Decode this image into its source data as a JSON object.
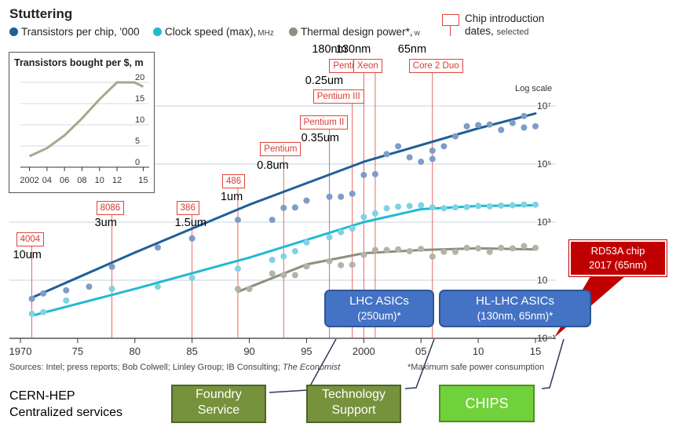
{
  "title": "Stuttering",
  "legend": [
    {
      "label": "Transistors per chip, '000",
      "unit": "",
      "color": "#1f5f99"
    },
    {
      "label": "Clock speed (max),",
      "unit": "MHz",
      "color": "#21b9d2"
    },
    {
      "label": "Thermal design power*,",
      "unit": "w",
      "color": "#8e8f7f"
    }
  ],
  "chip_legend": {
    "line1": "Chip introduction",
    "line2": "dates,",
    "line2_small": "selected"
  },
  "log_scale_label": "Log scale",
  "source": "Sources: Intel; press reports; Bob Colwell; Linley Group; IB Consulting;",
  "source_italic": "The Economist",
  "footnote": "*Maximum safe power consumption",
  "chips": [
    {
      "name": "4004",
      "year": 1971,
      "node": "10um"
    },
    {
      "name": "8086",
      "year": 1978,
      "node": "3um"
    },
    {
      "name": "386",
      "year": 1985,
      "node": "1.5um"
    },
    {
      "name": "486",
      "year": 1989,
      "node": "1um"
    },
    {
      "name": "Pentium",
      "year": 1993,
      "node": "0.8um"
    },
    {
      "name": "Pentium II",
      "year": 1997,
      "node": "0.35um"
    },
    {
      "name": "Pentium III",
      "year": 1999,
      "node": "0.25um"
    },
    {
      "name": "Pentium 4",
      "year": 2000,
      "node": "180nm"
    },
    {
      "name": "Xeon",
      "year": 2001,
      "node": "130nm"
    },
    {
      "name": "Core 2 Duo",
      "year": 2006,
      "node": "65nm"
    }
  ],
  "chart_data": [
    {
      "type": "scatter",
      "title": "Stuttering",
      "y_scale": "log",
      "ylim": [
        0.1,
        10000000
      ],
      "xlim": [
        1970,
        2016
      ],
      "x_tick_labels": [
        "1970",
        "75",
        "80",
        "85",
        "90",
        "95",
        "2000",
        "05",
        "10",
        "15"
      ],
      "x_tick_values": [
        1970,
        1975,
        1980,
        1985,
        1990,
        1995,
        2000,
        2005,
        2010,
        2015
      ],
      "y_tick_labels": [
        "10⁻¹",
        "10",
        "10³",
        "10⁵",
        "10⁷"
      ],
      "y_tick_values": [
        0.1,
        10,
        1000,
        100000,
        10000000
      ],
      "series": [
        {
          "name": "Transistors per chip, '000",
          "color": "#1f5f99",
          "points": [
            [
              1971,
              2.3
            ],
            [
              1972,
              3.5
            ],
            [
              1974,
              4.5
            ],
            [
              1976,
              6
            ],
            [
              1978,
              29
            ],
            [
              1982,
              134
            ],
            [
              1985,
              275
            ],
            [
              1985,
              275
            ],
            [
              1989,
              1200
            ],
            [
              1992,
              1200
            ],
            [
              1993,
              3100
            ],
            [
              1994,
              3200
            ],
            [
              1995,
              5500
            ],
            [
              1997,
              7500
            ],
            [
              1998,
              7500
            ],
            [
              1999,
              9500
            ],
            [
              2000,
              42000
            ],
            [
              2001,
              45000
            ],
            [
              2002,
              220000
            ],
            [
              2003,
              410000
            ],
            [
              2004,
              170000
            ],
            [
              2005,
              120000
            ],
            [
              2006,
              290000
            ],
            [
              2006,
              150000
            ],
            [
              2007,
              410000
            ],
            [
              2008,
              900000
            ],
            [
              2009,
              2000000
            ],
            [
              2010,
              2200000
            ],
            [
              2011,
              2300000
            ],
            [
              2012,
              1500000
            ],
            [
              2013,
              2600000
            ],
            [
              2014,
              1800000
            ],
            [
              2014,
              4500000
            ],
            [
              2015,
              2000000
            ]
          ],
          "trend": [
            [
              1971,
              2.5
            ],
            [
              1980,
              90
            ],
            [
              1990,
              4000
            ],
            [
              2000,
              120000
            ],
            [
              2010,
              1700000
            ],
            [
              2015,
              5500000
            ]
          ]
        },
        {
          "name": "Clock speed (max), MHz",
          "color": "#21b9d2",
          "points": [
            [
              1971,
              0.7
            ],
            [
              1972,
              0.8
            ],
            [
              1974,
              2
            ],
            [
              1978,
              5
            ],
            [
              1982,
              6
            ],
            [
              1985,
              12
            ],
            [
              1989,
              25
            ],
            [
              1992,
              50
            ],
            [
              1993,
              66
            ],
            [
              1994,
              100
            ],
            [
              1995,
              200
            ],
            [
              1997,
              300
            ],
            [
              1998,
              450
            ],
            [
              1999,
              600
            ],
            [
              2000,
              1500
            ],
            [
              2001,
              2000
            ],
            [
              2002,
              3000
            ],
            [
              2003,
              3400
            ],
            [
              2004,
              3600
            ],
            [
              2005,
              3800
            ],
            [
              2006,
              3200
            ],
            [
              2007,
              3000
            ],
            [
              2008,
              3200
            ],
            [
              2009,
              3300
            ],
            [
              2010,
              3600
            ],
            [
              2011,
              3500
            ],
            [
              2012,
              3700
            ],
            [
              2013,
              3800
            ],
            [
              2014,
              4000
            ],
            [
              2015,
              4000
            ]
          ],
          "trend": [
            [
              1971,
              0.6
            ],
            [
              1980,
              5
            ],
            [
              1990,
              60
            ],
            [
              2000,
              1000
            ],
            [
              2005,
              2800
            ],
            [
              2010,
              3600
            ],
            [
              2015,
              3800
            ]
          ]
        },
        {
          "name": "Thermal design power*, w",
          "color": "#8e8f7f",
          "points": [
            [
              1989,
              5
            ],
            [
              1990,
              5
            ],
            [
              1992,
              17
            ],
            [
              1993,
              15
            ],
            [
              1994,
              15
            ],
            [
              1995,
              30
            ],
            [
              1997,
              45
            ],
            [
              1998,
              33
            ],
            [
              1999,
              34
            ],
            [
              2000,
              75
            ],
            [
              2001,
              110
            ],
            [
              2002,
              110
            ],
            [
              2003,
              115
            ],
            [
              2004,
              100
            ],
            [
              2005,
              120
            ],
            [
              2006,
              65
            ],
            [
              2007,
              95
            ],
            [
              2008,
              95
            ],
            [
              2009,
              130
            ],
            [
              2010,
              125
            ],
            [
              2011,
              95
            ],
            [
              2012,
              130
            ],
            [
              2013,
              125
            ],
            [
              2014,
              150
            ],
            [
              2015,
              130
            ]
          ],
          "trend": [
            [
              1989,
              4
            ],
            [
              1995,
              35
            ],
            [
              2000,
              85
            ],
            [
              2005,
              110
            ],
            [
              2010,
              125
            ],
            [
              2015,
              115
            ]
          ]
        }
      ]
    },
    {
      "type": "line",
      "title": "Transistors bought per $, m",
      "x": [
        2002,
        2004,
        2006,
        2008,
        2010,
        2012,
        2013,
        2014,
        2015
      ],
      "values": [
        2.6,
        4.5,
        7.5,
        11.5,
        16,
        20,
        20,
        20,
        19
      ],
      "x_tick_labels": [
        "2002",
        "04",
        "06",
        "08",
        "10",
        "12",
        "15"
      ],
      "x_tick_values": [
        2002,
        2004,
        2006,
        2008,
        2010,
        2012,
        2015
      ],
      "y_tick_labels": [
        "0",
        "5",
        "10",
        "15",
        "20"
      ],
      "y_tick_values": [
        0,
        5,
        10,
        15,
        20
      ],
      "xlim": [
        2001.5,
        2015.5
      ],
      "ylim": [
        0,
        22
      ]
    }
  ],
  "annotations": {
    "cern": {
      "line1": "CERN-HEP",
      "line2": "Centralized services"
    },
    "lhc": {
      "line1": "LHC ASICs",
      "line2": "(250um)*"
    },
    "hllhc": {
      "line1": "HL-LHC ASICs",
      "line2": "(130nm, 65nm)*"
    },
    "rd53": {
      "line1": "RD53A chip",
      "line2": "2017 (65nm)"
    },
    "foundry": {
      "line1": "Foundry",
      "line2": "Service"
    },
    "tech": {
      "line1": "Technology",
      "line2": "Support"
    },
    "chips": {
      "label": "CHIPS"
    }
  }
}
